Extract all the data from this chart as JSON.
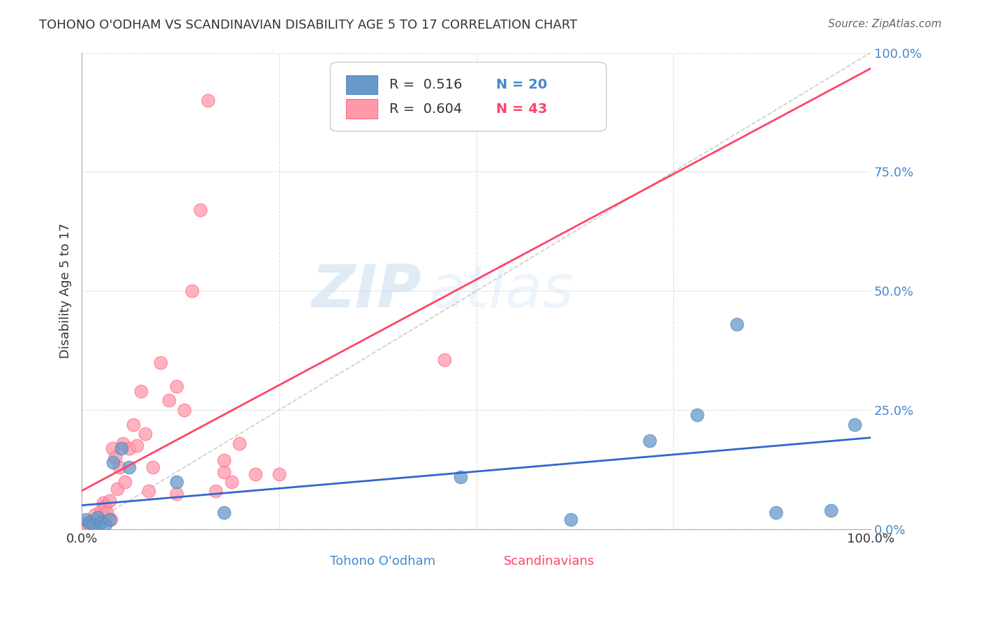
{
  "title": "TOHONO O'ODHAM VS SCANDINAVIAN DISABILITY AGE 5 TO 17 CORRELATION CHART",
  "source": "Source: ZipAtlas.com",
  "ylabel": "Disability Age 5 to 17",
  "ytick_labels": [
    "0.0%",
    "25.0%",
    "50.0%",
    "75.0%",
    "100.0%"
  ],
  "ytick_positions": [
    0,
    0.25,
    0.5,
    0.75,
    1.0
  ],
  "xlim": [
    0.0,
    1.0
  ],
  "ylim": [
    0.0,
    1.0
  ],
  "legend_blue_r": "0.516",
  "legend_blue_n": "20",
  "legend_pink_r": "0.604",
  "legend_pink_n": "43",
  "blue_color": "#6699CC",
  "pink_color": "#FF99AA",
  "blue_edge": "#5588BB",
  "pink_edge": "#FF6688",
  "line_blue": "#3366CC",
  "line_pink": "#FF4466",
  "line_diag": "#CCCCCC",
  "blue_points_x": [
    0.005,
    0.01,
    0.015,
    0.02,
    0.025,
    0.03,
    0.035,
    0.04,
    0.05,
    0.06,
    0.12,
    0.18,
    0.48,
    0.62,
    0.72,
    0.78,
    0.83,
    0.88,
    0.95,
    0.98
  ],
  "blue_points_y": [
    0.02,
    0.015,
    0.01,
    0.025,
    0.015,
    0.01,
    0.02,
    0.14,
    0.17,
    0.13,
    0.1,
    0.035,
    0.11,
    0.02,
    0.185,
    0.24,
    0.43,
    0.035,
    0.04,
    0.22
  ],
  "pink_points_x": [
    0.005,
    0.008,
    0.01,
    0.012,
    0.015,
    0.017,
    0.019,
    0.022,
    0.025,
    0.027,
    0.03,
    0.032,
    0.035,
    0.037,
    0.039,
    0.042,
    0.045,
    0.048,
    0.052,
    0.055,
    0.06,
    0.065,
    0.07,
    0.075,
    0.08,
    0.085,
    0.09,
    0.1,
    0.11,
    0.12,
    0.13,
    0.14,
    0.15,
    0.16,
    0.17,
    0.18,
    0.19,
    0.2,
    0.22,
    0.25,
    0.46,
    0.18,
    0.12
  ],
  "pink_points_y": [
    0.005,
    0.015,
    0.01,
    0.007,
    0.02,
    0.03,
    0.015,
    0.025,
    0.04,
    0.055,
    0.05,
    0.035,
    0.06,
    0.02,
    0.17,
    0.15,
    0.085,
    0.13,
    0.18,
    0.1,
    0.17,
    0.22,
    0.175,
    0.29,
    0.2,
    0.08,
    0.13,
    0.35,
    0.27,
    0.3,
    0.25,
    0.5,
    0.67,
    0.9,
    0.08,
    0.12,
    0.1,
    0.18,
    0.115,
    0.115,
    0.355,
    0.145,
    0.075
  ]
}
